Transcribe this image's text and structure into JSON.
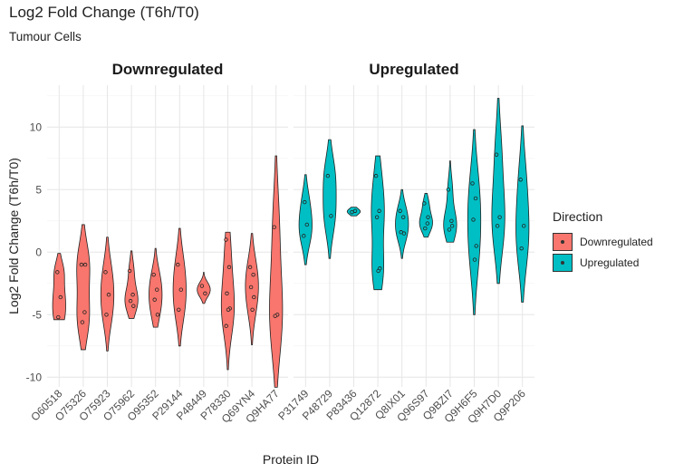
{
  "title": "Log2 Fold Change (T6h/T0)",
  "subtitle": "Tumour Cells",
  "legend": {
    "title": "Direction",
    "items": [
      {
        "label": "Downregulated",
        "color": "#F8766D"
      },
      {
        "label": "Upregulated",
        "color": "#00BFC4"
      }
    ]
  },
  "chart_data": {
    "type": "violin",
    "xlabel": "Protein ID",
    "ylabel": "Log2 Fold Change (T6h/T0)",
    "ylim": [
      -11,
      13
    ],
    "yticks": [
      -10,
      -5,
      0,
      5,
      10
    ],
    "grid": true,
    "legend_position": "right",
    "facets": [
      {
        "name": "Downregulated",
        "color": "#F8766D",
        "proteins": [
          {
            "id": "O60518",
            "min": -5.4,
            "max": -0.1,
            "points": [
              -1.6,
              -3.6,
              -5.2
            ]
          },
          {
            "id": "O75326",
            "min": -7.8,
            "max": 2.2,
            "points": [
              -1.0,
              -4.8,
              -5.6,
              -1.0
            ]
          },
          {
            "id": "O75923",
            "min": -7.9,
            "max": 1.2,
            "points": [
              -1.6,
              -3.4,
              -5.0
            ]
          },
          {
            "id": "O75962",
            "min": -5.3,
            "max": 0.1,
            "points": [
              -1.5,
              -3.4,
              -3.9,
              -4.3
            ]
          },
          {
            "id": "O95352",
            "min": -6.0,
            "max": 0.3,
            "points": [
              -1.8,
              -3.0,
              -3.8,
              -5.0
            ]
          },
          {
            "id": "P29144",
            "min": -7.5,
            "max": 1.9,
            "points": [
              -1.0,
              -3.0,
              -4.6
            ]
          },
          {
            "id": "P48449",
            "min": -4.1,
            "max": -1.6,
            "points": [
              -2.7,
              -3.3
            ]
          },
          {
            "id": "P78330",
            "min": -9.4,
            "max": 1.6,
            "points": [
              1.0,
              -1.2,
              -3.3,
              -4.5,
              -4.6,
              -5.9
            ]
          },
          {
            "id": "Q69YN4",
            "min": -7.4,
            "max": 1.5,
            "points": [
              -1.2,
              -1.8,
              -2.8,
              -3.6,
              -4.6
            ]
          },
          {
            "id": "Q9HA77",
            "min": -10.8,
            "max": 7.7,
            "points": [
              2.0,
              -5.0,
              -5.1
            ]
          }
        ]
      },
      {
        "name": "Upregulated",
        "color": "#00BFC4",
        "proteins": [
          {
            "id": "P31749",
            "min": -1.0,
            "max": 6.2,
            "points": [
              1.3,
              2.2,
              4.0
            ]
          },
          {
            "id": "P48729",
            "min": -0.5,
            "max": 9.0,
            "points": [
              6.1,
              2.9
            ]
          },
          {
            "id": "P83436",
            "min": 2.9,
            "max": 3.6,
            "points": [
              3.2,
              3.3
            ]
          },
          {
            "id": "Q12872",
            "min": -3.0,
            "max": 7.7,
            "points": [
              6.1,
              3.3,
              2.8,
              -1.3,
              -1.5
            ]
          },
          {
            "id": "Q8IX01",
            "min": -0.5,
            "max": 5.0,
            "points": [
              3.3,
              2.8,
              1.6,
              1.5
            ]
          },
          {
            "id": "Q96S97",
            "min": 1.2,
            "max": 4.7,
            "points": [
              3.9,
              2.3,
              1.9,
              2.8
            ]
          },
          {
            "id": "Q9BZI7",
            "min": 0.8,
            "max": 7.3,
            "points": [
              5.0,
              2.5,
              1.8,
              2.1
            ]
          },
          {
            "id": "Q9H6F5",
            "min": -5.0,
            "max": 9.8,
            "points": [
              5.5,
              4.3,
              2.6,
              0.5,
              -0.6
            ]
          },
          {
            "id": "Q9H7D0",
            "min": -2.5,
            "max": 12.3,
            "points": [
              7.8,
              2.8,
              2.1
            ]
          },
          {
            "id": "Q9P206",
            "min": -4.0,
            "max": 10.1,
            "points": [
              5.8,
              2.1,
              0.3
            ]
          }
        ]
      }
    ]
  }
}
